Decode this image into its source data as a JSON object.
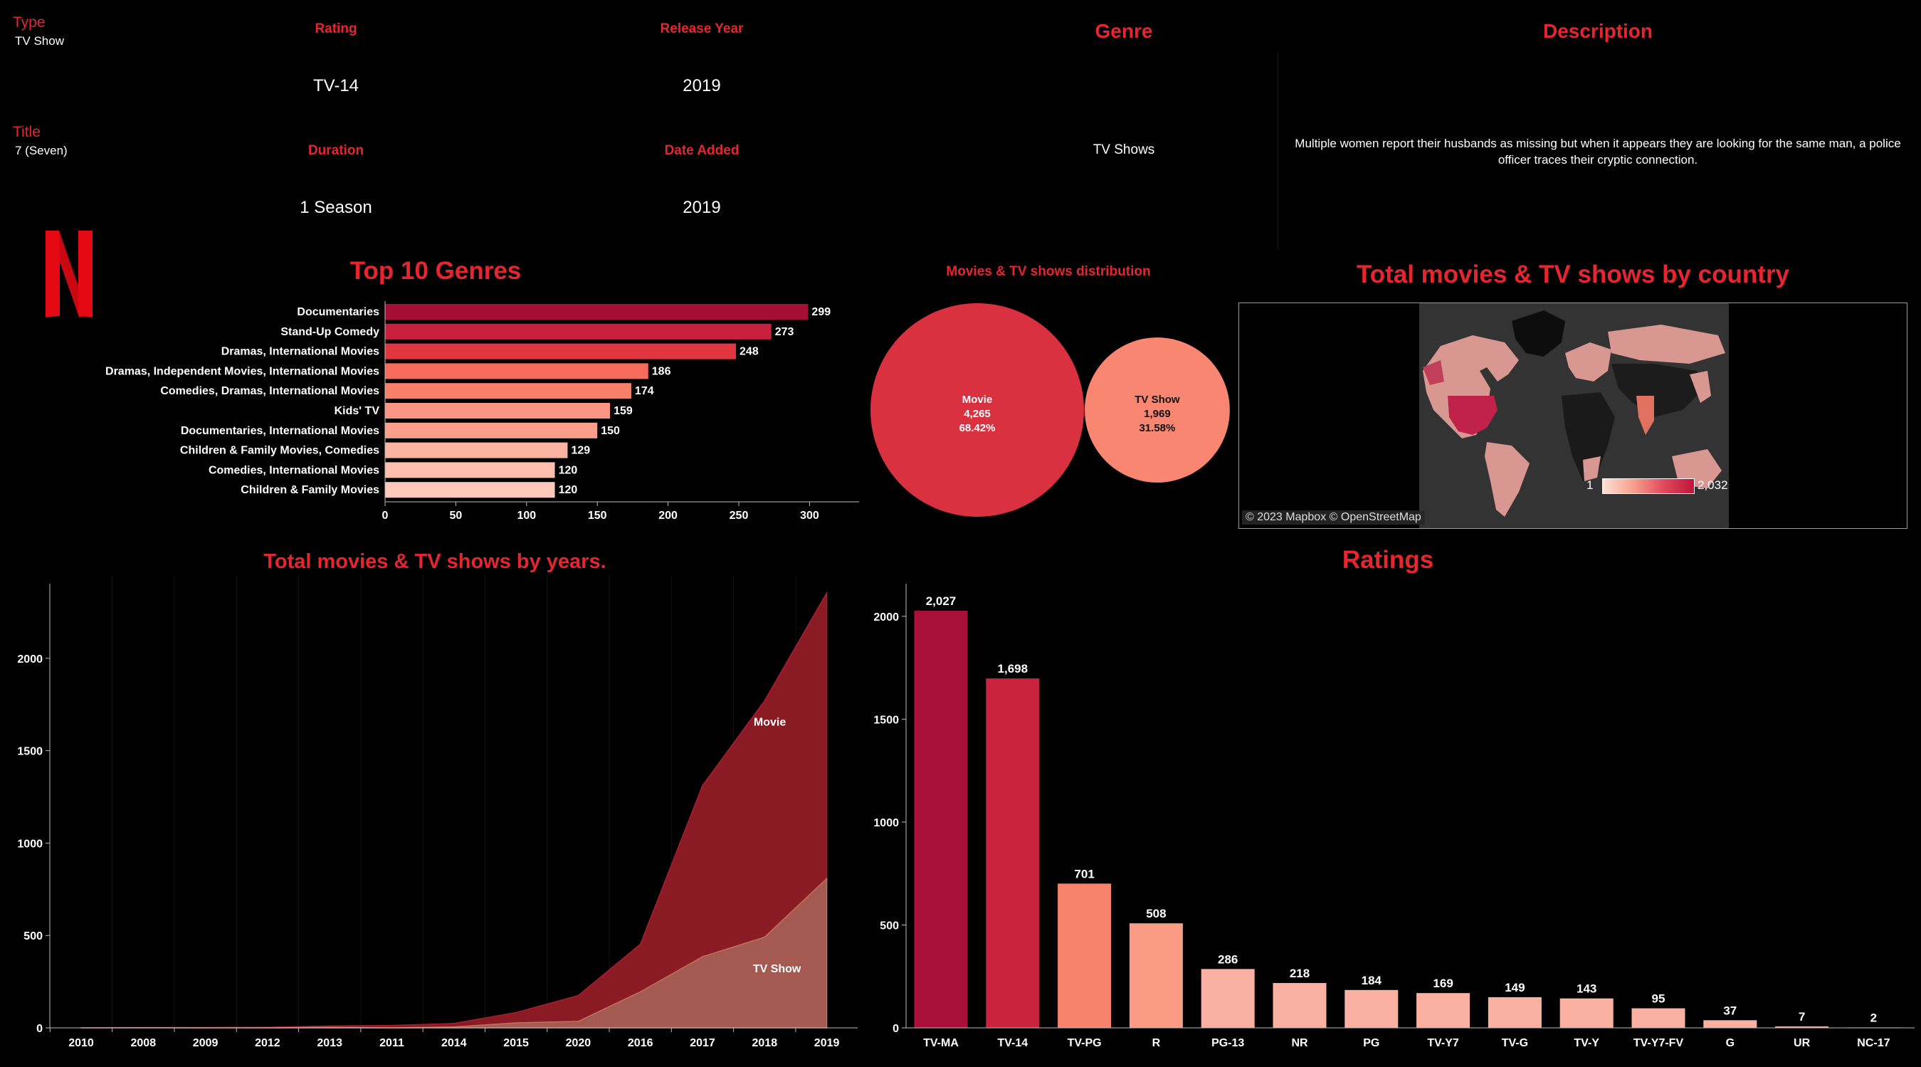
{
  "details": {
    "type_label": "Type",
    "type_value": "TV Show",
    "title_label": "Title",
    "title_value": "7 (Seven)",
    "rating_label": "Rating",
    "rating_value": "TV-14",
    "release_year_label": "Release Year",
    "release_year_value": "2019",
    "duration_label": "Duration",
    "duration_value": "1 Season",
    "date_added_label": "Date Added",
    "date_added_value": "2019",
    "genre_label": "Genre",
    "genre_value": "TV Shows",
    "description_label": "Description",
    "description_value": "Multiple women report their husbands as missing but when it appears they are looking for the same man, a police officer traces their cryptic connection."
  },
  "logo": {
    "letter": "N",
    "color": "#e50914"
  },
  "map": {
    "title": "Total movies & TV shows by country",
    "legend_min": "1",
    "legend_max": "2,032",
    "attribution": "© 2023 Mapbox © OpenStreetMap"
  },
  "colors": {
    "accent": "#e5262f",
    "dark": "#a50f33",
    "mid": "#d93140",
    "salmon": "#f88671",
    "light": "#fbb5a4"
  },
  "chart_data": [
    {
      "type": "bar",
      "orientation": "horizontal",
      "title": "Top 10 Genres",
      "categories": [
        "Documentaries",
        "Stand-Up Comedy",
        "Dramas, International Movies",
        "Dramas, Independent Movies, International Movies",
        "Comedies, Dramas, International Movies",
        "Kids' TV",
        "Documentaries, International Movies",
        "Children & Family Movies, Comedies",
        "Comedies, International Movies",
        "Children & Family Movies"
      ],
      "values": [
        299,
        273,
        248,
        186,
        174,
        159,
        150,
        129,
        120,
        120
      ],
      "data_labels": [
        "299",
        "273",
        "248",
        "186",
        "174",
        "159",
        "150",
        "129",
        "120",
        "120"
      ],
      "xlim": [
        0,
        335
      ],
      "xticks": [
        0,
        50,
        100,
        150,
        200,
        250,
        300
      ]
    },
    {
      "type": "bubble",
      "title": "Movies & TV shows distribution",
      "categories": [
        "Movie",
        "TV Show"
      ],
      "values": [
        4265,
        1969
      ],
      "value_labels": [
        "4,265",
        "1,969"
      ],
      "percent_labels": [
        "68.42%",
        "31.58%"
      ]
    },
    {
      "type": "area",
      "title": "Total movies & TV shows by years.",
      "x": [
        "2010",
        "2008",
        "2009",
        "2012",
        "2013",
        "2011",
        "2014",
        "2015",
        "2020",
        "2016",
        "2017",
        "2018",
        "2019"
      ],
      "series": [
        {
          "name": "Movie",
          "values": [
            1,
            1,
            2,
            3,
            7,
            13,
            19,
            56,
            140,
            258,
            926,
            1280,
            1546
          ]
        },
        {
          "name": "TV Show",
          "values": [
            0,
            1,
            0,
            0,
            3,
            0,
            5,
            27,
            35,
            195,
            385,
            491,
            808
          ]
        }
      ],
      "ylim": [
        0,
        2450
      ],
      "yticks": [
        0,
        500,
        1000,
        1500,
        2000
      ]
    },
    {
      "type": "bar",
      "title": "Ratings",
      "categories": [
        "TV-MA",
        "TV-14",
        "TV-PG",
        "R",
        "PG-13",
        "NR",
        "PG",
        "TV-Y7",
        "TV-G",
        "TV-Y",
        "TV-Y7-FV",
        "G",
        "UR",
        "NC-17"
      ],
      "values": [
        2027,
        1698,
        701,
        508,
        286,
        218,
        184,
        169,
        149,
        143,
        95,
        37,
        7,
        2
      ],
      "data_labels": [
        "2,027",
        "1,698",
        "701",
        "508",
        "286",
        "218",
        "184",
        "169",
        "149",
        "143",
        "95",
        "37",
        "7",
        "2"
      ],
      "ylim": [
        0,
        2200
      ],
      "yticks": [
        0,
        500,
        1000,
        1500,
        2000
      ]
    }
  ]
}
